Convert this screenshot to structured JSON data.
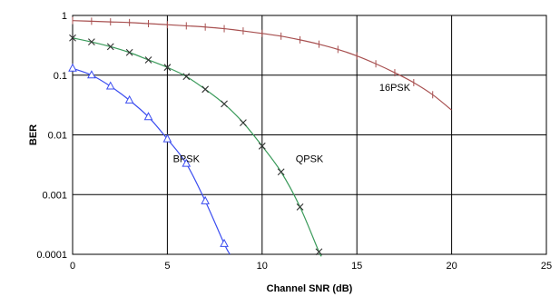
{
  "chart_data": {
    "type": "line",
    "title": "",
    "xlabel": "Channel SNR (dB)",
    "ylabel": "BER",
    "xlim": [
      0,
      25
    ],
    "ylim": [
      0.0001,
      1
    ],
    "y_scale": "log",
    "grid": true,
    "x_ticks": [
      "0",
      "5",
      "10",
      "15",
      "20",
      "25"
    ],
    "y_ticks": [
      "1",
      "0.1",
      "0.01",
      "0.001",
      "0.0001"
    ],
    "x_tick_values": [
      0,
      5,
      10,
      15,
      20,
      25
    ],
    "y_tick_values": [
      1,
      0.1,
      0.01,
      0.001,
      0.0001
    ],
    "series": [
      {
        "name": "BPSK",
        "color": "#3a4cf0",
        "marker": "triangle",
        "marker_x": [
          0,
          1,
          2,
          3,
          4,
          5,
          6,
          7,
          8
        ],
        "x": [
          0,
          1,
          2,
          3,
          4,
          5,
          6,
          7,
          8,
          8.3
        ],
        "y": [
          0.13,
          0.1,
          0.065,
          0.038,
          0.02,
          0.0085,
          0.0033,
          0.00078,
          0.00015,
          0.0001
        ]
      },
      {
        "name": "QPSK",
        "color": "#3a9a5a",
        "marker": "x",
        "marker_x": [
          0,
          1,
          2,
          3,
          4,
          5,
          6,
          7,
          8,
          9,
          10,
          11,
          12,
          13
        ],
        "x": [
          0,
          1,
          2,
          3,
          4,
          5,
          6,
          7,
          8,
          9,
          10,
          11,
          12,
          13,
          13.1
        ],
        "y": [
          0.42,
          0.36,
          0.3,
          0.24,
          0.18,
          0.135,
          0.095,
          0.058,
          0.033,
          0.016,
          0.0065,
          0.0024,
          0.00062,
          0.00011,
          0.0001
        ]
      },
      {
        "name": "16PSK",
        "color": "#a85050",
        "marker": "plus",
        "marker_x": [
          0,
          1,
          2,
          3,
          4,
          5,
          6,
          7,
          8,
          9,
          10,
          11,
          12,
          13,
          14,
          15,
          16,
          17,
          18,
          19
        ],
        "x": [
          0,
          1,
          2,
          3,
          4,
          5,
          6,
          7,
          8,
          9,
          10,
          11,
          12,
          13,
          14,
          15,
          16,
          17,
          18,
          19,
          20
        ],
        "y": [
          0.82,
          0.8,
          0.78,
          0.76,
          0.73,
          0.7,
          0.67,
          0.64,
          0.6,
          0.55,
          0.5,
          0.45,
          0.39,
          0.33,
          0.27,
          0.21,
          0.155,
          0.11,
          0.075,
          0.047,
          0.026
        ]
      }
    ],
    "annotations": [
      {
        "text": "BPSK",
        "x": 6.0,
        "y": 0.0035
      },
      {
        "text": "QPSK",
        "x": 12.5,
        "y": 0.0035
      },
      {
        "text": "16PSK",
        "x": 17.0,
        "y": 0.055
      }
    ]
  }
}
